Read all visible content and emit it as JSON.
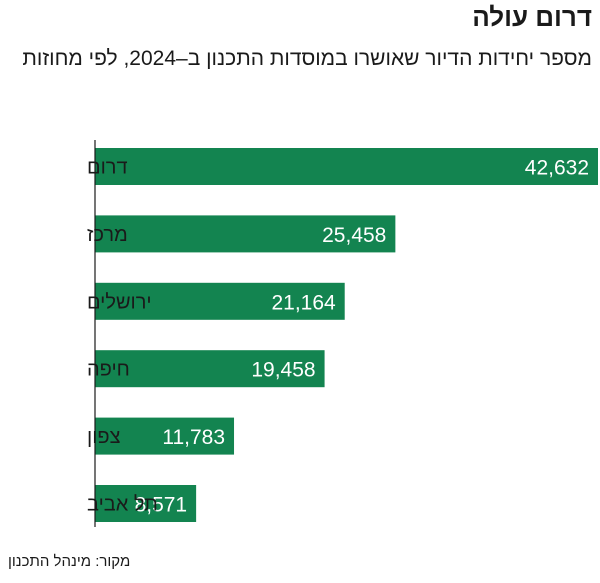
{
  "chart_data": {
    "type": "bar",
    "orientation": "horizontal",
    "title": "דרום עולה",
    "subtitle": "מספר יחידות הדיור שאושרו במוסדות התכנון ב–2024, לפי מחוזות",
    "categories": [
      "דרום",
      "מרכז",
      "ירושלים",
      "חיפה",
      "צפון",
      "תל אביב"
    ],
    "values": [
      42632,
      25458,
      21164,
      19458,
      11783,
      8571
    ],
    "value_labels": [
      "42,632",
      "25,458",
      "21,164",
      "19,458",
      "11,783",
      "8,571"
    ],
    "xlim": [
      0,
      42632
    ],
    "xlabel": "",
    "ylabel": "",
    "grid": false,
    "source": "מקור: מינהל התכנון",
    "bar_color": "#138450",
    "label_color": "#ffffff"
  }
}
